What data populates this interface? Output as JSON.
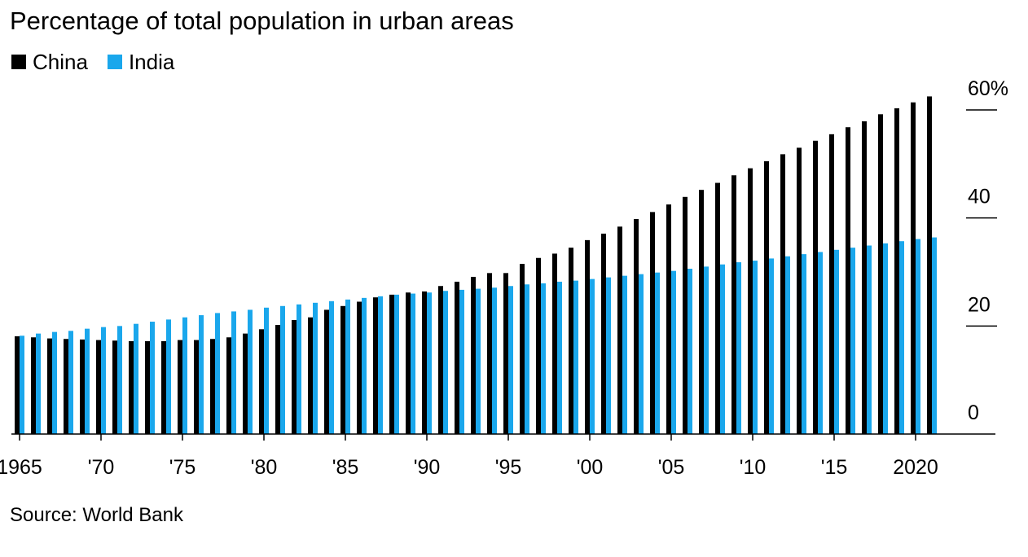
{
  "title": "Percentage of total population in urban areas",
  "source": "Source: World Bank",
  "colors": {
    "China": "#000000",
    "India": "#1aa7ec"
  },
  "chart_data": {
    "type": "bar",
    "title": "Percentage of total population in urban areas",
    "xlabel": "",
    "ylabel": "",
    "ylim": [
      0,
      60
    ],
    "yticks": [
      0,
      20,
      40,
      60
    ],
    "ytick_labels": [
      "0",
      "20",
      "40",
      "60%"
    ],
    "axis_position": "right",
    "grid": false,
    "legend_position": "top-left",
    "x": [
      1965,
      1966,
      1967,
      1968,
      1969,
      1970,
      1971,
      1972,
      1973,
      1974,
      1975,
      1976,
      1977,
      1978,
      1979,
      1980,
      1981,
      1982,
      1983,
      1984,
      1985,
      1986,
      1987,
      1988,
      1989,
      1990,
      1991,
      1992,
      1993,
      1994,
      1995,
      1996,
      1997,
      1998,
      1999,
      2000,
      2001,
      2002,
      2003,
      2004,
      2005,
      2006,
      2007,
      2008,
      2009,
      2010,
      2011,
      2012,
      2013,
      2014,
      2015,
      2016,
      2017,
      2018,
      2019,
      2020,
      2021
    ],
    "xtick_values": [
      1965,
      1970,
      1975,
      1980,
      1985,
      1990,
      1995,
      2000,
      2005,
      2010,
      2015,
      2020
    ],
    "xtick_labels": [
      "1965",
      "'70",
      "'75",
      "'80",
      "'85",
      "'90",
      "'95",
      "'00",
      "'05",
      "'10",
      "'15",
      "2020"
    ],
    "series": [
      {
        "name": "China",
        "color": "#000000",
        "values": [
          18.1,
          17.9,
          17.7,
          17.6,
          17.5,
          17.4,
          17.3,
          17.2,
          17.2,
          17.2,
          17.4,
          17.4,
          17.6,
          17.9,
          18.6,
          19.4,
          20.2,
          21.1,
          21.6,
          23.0,
          23.7,
          24.5,
          25.3,
          25.8,
          26.2,
          26.4,
          27.4,
          28.2,
          29.1,
          29.8,
          29.8,
          31.5,
          32.6,
          33.4,
          34.5,
          35.9,
          37.1,
          38.4,
          39.8,
          41.1,
          42.5,
          43.9,
          45.2,
          46.5,
          47.9,
          49.2,
          50.5,
          51.8,
          53.0,
          54.3,
          55.5,
          56.8,
          57.9,
          59.2,
          60.3,
          61.4,
          62.5
        ]
      },
      {
        "name": "India",
        "color": "#1aa7ec",
        "values": [
          18.2,
          18.6,
          18.9,
          19.1,
          19.5,
          19.8,
          20.0,
          20.4,
          20.8,
          21.2,
          21.6,
          22.0,
          22.4,
          22.7,
          23.0,
          23.4,
          23.7,
          24.0,
          24.3,
          24.6,
          24.9,
          25.2,
          25.5,
          25.8,
          26.0,
          26.2,
          26.5,
          26.7,
          26.9,
          27.1,
          27.4,
          27.7,
          27.9,
          28.2,
          28.4,
          28.7,
          29.0,
          29.3,
          29.6,
          29.9,
          30.2,
          30.6,
          31.0,
          31.4,
          31.8,
          32.1,
          32.5,
          32.9,
          33.3,
          33.7,
          34.1,
          34.5,
          34.9,
          35.3,
          35.7,
          36.1,
          36.4
        ]
      }
    ]
  }
}
